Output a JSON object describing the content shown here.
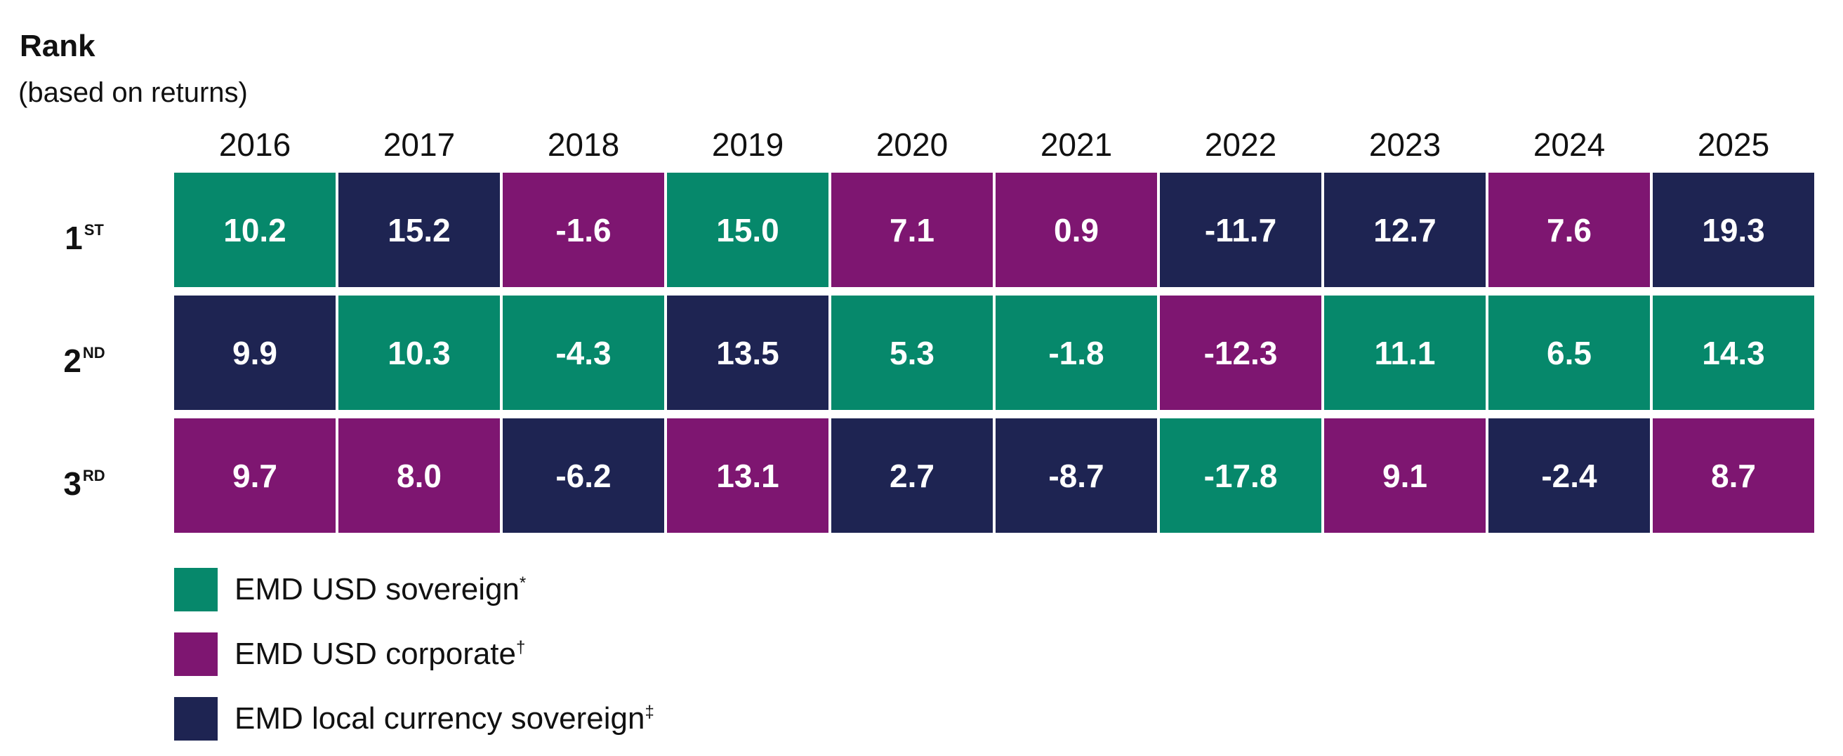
{
  "chart_data": {
    "type": "table",
    "title": "Rank",
    "subtitle": "(based on returns)",
    "years": [
      "2016",
      "2017",
      "2018",
      "2019",
      "2020",
      "2021",
      "2022",
      "2023",
      "2024",
      "2025"
    ],
    "ranks": [
      {
        "label": "1",
        "suffix": "ST"
      },
      {
        "label": "2",
        "suffix": "ND"
      },
      {
        "label": "3",
        "suffix": "RD"
      }
    ],
    "series": [
      {
        "key": "sov",
        "name": "EMD USD sovereign",
        "mark": "*",
        "color": "#06886B"
      },
      {
        "key": "corp",
        "name": "EMD USD corporate",
        "mark": "†",
        "color": "#7E1671"
      },
      {
        "key": "local",
        "name": "EMD local currency sovereign",
        "mark": "‡",
        "color": "#1E2452"
      }
    ],
    "cells": [
      [
        {
          "value": "10.2",
          "series": "sov"
        },
        {
          "value": "15.2",
          "series": "local"
        },
        {
          "value": "-1.6",
          "series": "corp"
        },
        {
          "value": "15.0",
          "series": "sov"
        },
        {
          "value": "7.1",
          "series": "corp"
        },
        {
          "value": "0.9",
          "series": "corp"
        },
        {
          "value": "-11.7",
          "series": "local"
        },
        {
          "value": "12.7",
          "series": "local"
        },
        {
          "value": "7.6",
          "series": "corp"
        },
        {
          "value": "19.3",
          "series": "local"
        }
      ],
      [
        {
          "value": "9.9",
          "series": "local"
        },
        {
          "value": "10.3",
          "series": "sov"
        },
        {
          "value": "-4.3",
          "series": "sov"
        },
        {
          "value": "13.5",
          "series": "local"
        },
        {
          "value": "5.3",
          "series": "sov"
        },
        {
          "value": "-1.8",
          "series": "sov"
        },
        {
          "value": "-12.3",
          "series": "corp"
        },
        {
          "value": "11.1",
          "series": "sov"
        },
        {
          "value": "6.5",
          "series": "sov"
        },
        {
          "value": "14.3",
          "series": "sov"
        }
      ],
      [
        {
          "value": "9.7",
          "series": "corp"
        },
        {
          "value": "8.0",
          "series": "corp"
        },
        {
          "value": "-6.2",
          "series": "local"
        },
        {
          "value": "13.1",
          "series": "corp"
        },
        {
          "value": "2.7",
          "series": "local"
        },
        {
          "value": "-8.7",
          "series": "local"
        },
        {
          "value": "-17.8",
          "series": "sov"
        },
        {
          "value": "9.1",
          "series": "corp"
        },
        {
          "value": "-2.4",
          "series": "local"
        },
        {
          "value": "8.7",
          "series": "corp"
        }
      ]
    ]
  }
}
